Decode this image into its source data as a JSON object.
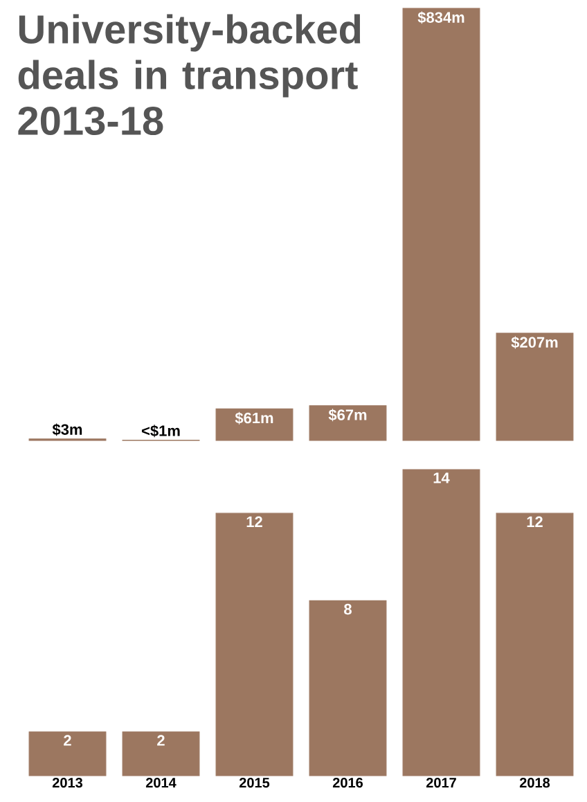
{
  "chart_data": [
    {
      "type": "bar",
      "title": "University-backed deals in transport 2013-18",
      "categories": [
        "2013",
        "2014",
        "2015",
        "2016",
        "2017",
        "2018"
      ],
      "values": [
        3,
        0.5,
        61,
        67,
        834,
        207
      ],
      "value_labels": [
        "$3m",
        "<$1m",
        "$61m",
        "$67m",
        "$834m",
        "$207m"
      ],
      "color": "#9c7760",
      "tick_labels": false
    },
    {
      "type": "bar",
      "categories": [
        "2013",
        "2014",
        "2015",
        "2016",
        "2017",
        "2018"
      ],
      "values": [
        2,
        2,
        12,
        8,
        14,
        12
      ],
      "data_labels": true,
      "color": "#9c7760"
    }
  ]
}
